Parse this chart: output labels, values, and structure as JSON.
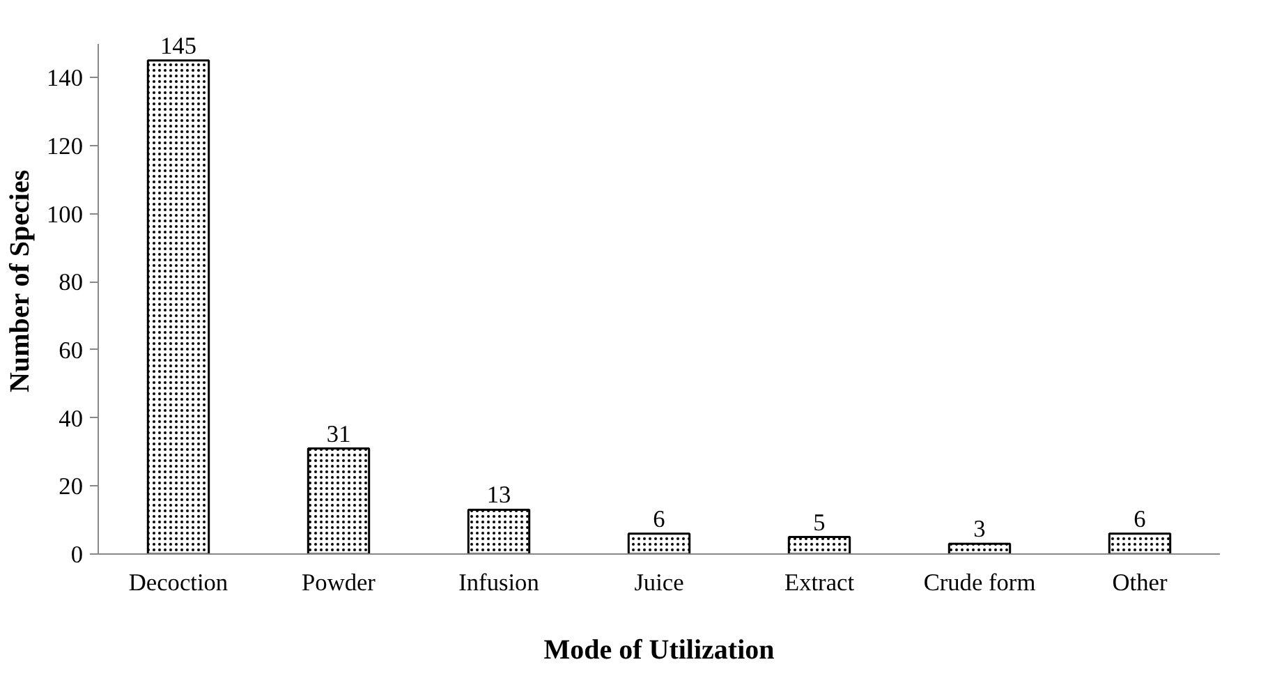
{
  "chart_data": {
    "type": "bar",
    "xlabel": "Mode of Utilization",
    "ylabel": "Number of Species",
    "categories": [
      "Decoction",
      "Powder",
      "Infusion",
      "Juice",
      "Extract",
      "Crude form",
      "Other"
    ],
    "values": [
      145,
      31,
      13,
      6,
      5,
      3,
      6
    ],
    "color": "#000000",
    "ylim": [
      0,
      150
    ],
    "yticks": [
      0,
      20,
      40,
      60,
      80,
      100,
      120,
      140
    ],
    "data_labels": true,
    "grid": false
  }
}
